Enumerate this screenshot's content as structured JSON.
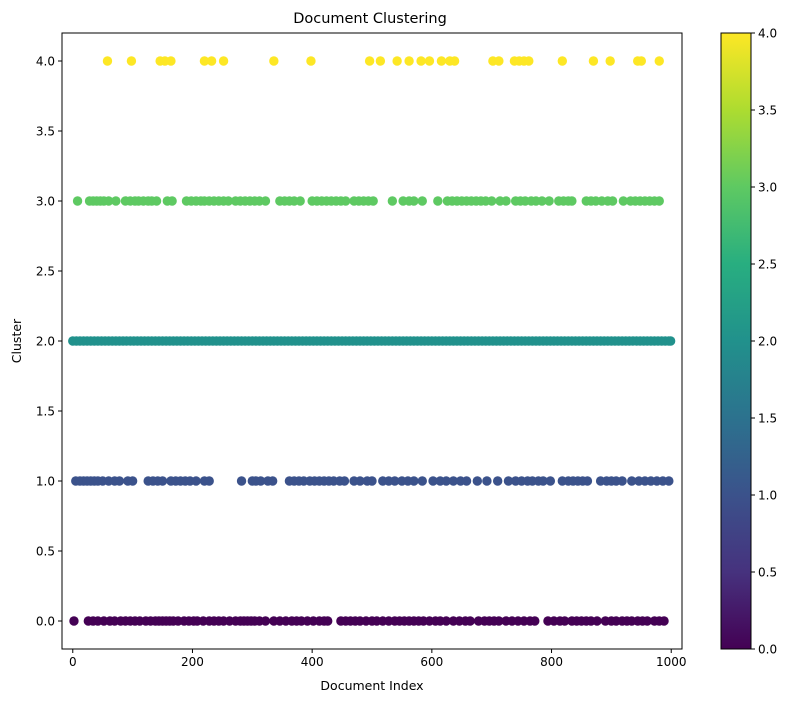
{
  "chart_data": {
    "type": "scatter",
    "title": "Document Clustering",
    "xlabel": "Document Index",
    "ylabel": "Cluster",
    "xlim": [
      -18,
      1018
    ],
    "ylim": [
      -0.2,
      4.2
    ],
    "xticks": [
      0,
      200,
      400,
      600,
      800,
      1000
    ],
    "xtick_labels": [
      "0",
      "200",
      "400",
      "600",
      "800",
      "1000"
    ],
    "yticks": [
      0,
      0.5,
      1,
      1.5,
      2,
      2.5,
      3,
      3.5,
      4
    ],
    "ytick_labels": [
      "0.0",
      "0.5",
      "1.0",
      "1.5",
      "2.0",
      "2.5",
      "3.0",
      "3.5",
      "4.0"
    ],
    "grid": false,
    "colormap": "viridis",
    "colorbar": {
      "range": [
        0,
        4
      ],
      "ticks": [
        0,
        0.5,
        1,
        1.5,
        2,
        2.5,
        3,
        3.5,
        4
      ],
      "tick_labels": [
        "0.0",
        "0.5",
        "1.0",
        "1.5",
        "2.0",
        "2.5",
        "3.0",
        "3.5",
        "4.0"
      ]
    },
    "cluster_colors": {
      "0": "#440154",
      "1": "#3b528b",
      "2": "#21918c",
      "3": "#5ec962",
      "4": "#fde725"
    },
    "series": [
      {
        "cluster": 0,
        "x": [
          2,
          26,
          34,
          42,
          52,
          62,
          70,
          80,
          88,
          96,
          104,
          112,
          122,
          130,
          138,
          144,
          150,
          156,
          162,
          168,
          176,
          186,
          194,
          202,
          208,
          218,
          228,
          236,
          244,
          252,
          262,
          272,
          280,
          286,
          292,
          298,
          304,
          312,
          322,
          336,
          346,
          356,
          366,
          374,
          382,
          392,
          402,
          412,
          420,
          426,
          448,
          456,
          464,
          472,
          480,
          490,
          500,
          508,
          518,
          528,
          538,
          546,
          554,
          562,
          570,
          578,
          586,
          596,
          606,
          614,
          624,
          636,
          646,
          656,
          664,
          678,
          688,
          696,
          704,
          712,
          724,
          734,
          744,
          754,
          764,
          772,
          794,
          804,
          814,
          822,
          834,
          842,
          850,
          858,
          866,
          876,
          890,
          900,
          908,
          918,
          926,
          934,
          944,
          952,
          960,
          972,
          980,
          988
        ],
        "y": 0
      },
      {
        "cluster": 1,
        "x": [
          5,
          12,
          18,
          24,
          30,
          36,
          42,
          50,
          60,
          70,
          78,
          92,
          100,
          126,
          134,
          142,
          150,
          164,
          172,
          180,
          188,
          196,
          206,
          220,
          228,
          282,
          300,
          306,
          314,
          326,
          334,
          362,
          370,
          378,
          386,
          396,
          404,
          412,
          420,
          428,
          436,
          446,
          454,
          470,
          480,
          492,
          500,
          518,
          528,
          538,
          550,
          560,
          570,
          584,
          602,
          614,
          624,
          636,
          648,
          658,
          676,
          692,
          710,
          728,
          740,
          750,
          760,
          768,
          778,
          786,
          798,
          818,
          828,
          836,
          844,
          852,
          860,
          882,
          892,
          900,
          908,
          918,
          934,
          946,
          956,
          966,
          976,
          986,
          996
        ],
        "y": 1
      },
      {
        "cluster": 2,
        "x": [
          0,
          6,
          12,
          18,
          24,
          30,
          36,
          42,
          48,
          54,
          60,
          66,
          72,
          78,
          84,
          90,
          96,
          102,
          108,
          114,
          120,
          126,
          132,
          138,
          144,
          150,
          156,
          162,
          168,
          174,
          180,
          186,
          192,
          198,
          204,
          210,
          216,
          222,
          228,
          234,
          240,
          246,
          252,
          258,
          264,
          270,
          276,
          282,
          288,
          294,
          300,
          306,
          312,
          318,
          324,
          330,
          336,
          342,
          348,
          354,
          360,
          366,
          372,
          378,
          384,
          390,
          396,
          402,
          408,
          414,
          420,
          426,
          432,
          438,
          444,
          450,
          456,
          462,
          468,
          474,
          480,
          486,
          492,
          498,
          504,
          510,
          516,
          522,
          528,
          534,
          540,
          546,
          552,
          558,
          564,
          570,
          576,
          582,
          588,
          594,
          600,
          606,
          612,
          618,
          624,
          630,
          636,
          642,
          648,
          654,
          660,
          666,
          672,
          678,
          684,
          690,
          696,
          702,
          708,
          714,
          720,
          726,
          732,
          738,
          744,
          750,
          756,
          762,
          768,
          774,
          780,
          786,
          792,
          798,
          804,
          810,
          816,
          822,
          828,
          834,
          840,
          846,
          852,
          858,
          864,
          870,
          876,
          882,
          888,
          894,
          900,
          906,
          912,
          918,
          924,
          930,
          936,
          942,
          948,
          954,
          960,
          966,
          972,
          978,
          984,
          990,
          996,
          999
        ],
        "y": 2
      },
      {
        "cluster": 3,
        "x": [
          8,
          28,
          34,
          40,
          46,
          52,
          60,
          72,
          88,
          96,
          104,
          110,
          118,
          126,
          132,
          140,
          158,
          166,
          190,
          198,
          206,
          214,
          220,
          228,
          236,
          244,
          252,
          260,
          272,
          280,
          288,
          296,
          304,
          312,
          322,
          346,
          354,
          362,
          370,
          380,
          400,
          408,
          416,
          424,
          432,
          440,
          448,
          456,
          470,
          478,
          486,
          494,
          502,
          534,
          552,
          562,
          570,
          584,
          610,
          626,
          634,
          642,
          650,
          658,
          666,
          674,
          682,
          690,
          700,
          714,
          724,
          740,
          748,
          756,
          766,
          774,
          784,
          796,
          812,
          820,
          828,
          834,
          858,
          866,
          874,
          884,
          894,
          902,
          920,
          932,
          940,
          948,
          956,
          964,
          972,
          980
        ],
        "y": 3
      },
      {
        "cluster": 4,
        "x": [
          58,
          98,
          146,
          154,
          164,
          220,
          232,
          252,
          336,
          398,
          496,
          514,
          542,
          562,
          582,
          596,
          616,
          630,
          638,
          702,
          712,
          738,
          746,
          754,
          762,
          818,
          870,
          898,
          944,
          950,
          980
        ],
        "y": 4
      }
    ]
  }
}
